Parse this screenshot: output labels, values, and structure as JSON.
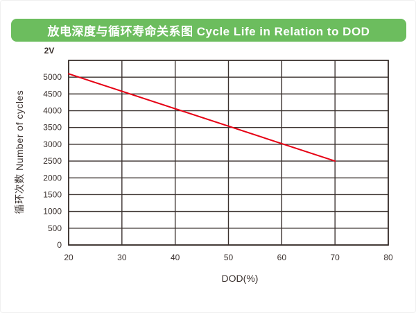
{
  "banner": {
    "title": "放电深度与循环寿命关系图 Cycle Life in Relation to DOD",
    "background": "#6cbd5e",
    "text_color": "#ffffff"
  },
  "chart_data": {
    "type": "line",
    "title": "放电深度与循环寿命关系图 Cycle Life in Relation to DOD",
    "xlabel": "DOD(%)",
    "ylabel": "循环次数 Number of cycles",
    "annotation": "2V",
    "xlim": [
      20,
      80
    ],
    "ylim": [
      0,
      5500
    ],
    "xticks": [
      20,
      30,
      40,
      50,
      60,
      70,
      80
    ],
    "yticks": [
      0,
      500,
      1000,
      1500,
      2000,
      2500,
      3000,
      3500,
      4000,
      4500,
      5000
    ],
    "grid": true,
    "legend_position": "none",
    "axis_color": "#3a312e",
    "series": [
      {
        "name": "cycle-life-vs-dod",
        "color": "#e60014",
        "x": [
          20,
          70
        ],
        "y": [
          5100,
          2500
        ]
      }
    ]
  }
}
